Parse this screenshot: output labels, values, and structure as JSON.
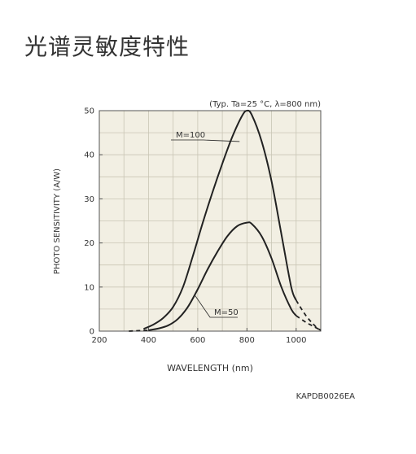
{
  "page": {
    "title": "光谱灵敏度特性"
  },
  "colors": {
    "plot_background": "#f2efe3",
    "grid": "#c9c5b5",
    "curve": "#222222",
    "text": "#333333"
  },
  "chart_data": {
    "type": "line",
    "condition_note": "(Typ. Ta=25 °C, λ=800 nm)",
    "xlabel": "WAVELENGTH (nm)",
    "ylabel": "PHOTO SENSITIVITY (A/W)",
    "xlim": [
      200,
      1100
    ],
    "ylim": [
      0,
      50
    ],
    "xticks": [
      200,
      400,
      600,
      800,
      1000
    ],
    "yticks": [
      0,
      10,
      20,
      30,
      40,
      50
    ],
    "grid": true,
    "series": [
      {
        "name": "M=100",
        "solid": {
          "x": [
            380,
            420,
            460,
            500,
            540,
            580,
            620,
            660,
            700,
            740,
            780,
            800,
            820,
            860,
            900,
            940,
            980,
            1000
          ],
          "y": [
            0.5,
            1.5,
            3.0,
            5.5,
            10.0,
            17.0,
            24.5,
            31.5,
            38.0,
            44.0,
            48.8,
            50.0,
            49.0,
            43.0,
            34.0,
            22.0,
            10.0,
            7.0
          ]
        },
        "dashed": {
          "x": [
            1000,
            1040,
            1080,
            1100
          ],
          "y": [
            7.0,
            3.5,
            1.0,
            0.2
          ]
        }
      },
      {
        "name": "M=50",
        "solid": {
          "x": [
            400,
            440,
            480,
            520,
            560,
            600,
            640,
            680,
            720,
            760,
            800,
            820,
            860,
            900,
            940,
            980,
            1000
          ],
          "y": [
            0.2,
            0.6,
            1.3,
            2.8,
            5.5,
            9.5,
            14.0,
            18.0,
            21.5,
            23.8,
            24.6,
            24.3,
            21.5,
            16.5,
            10.0,
            5.0,
            3.5
          ]
        },
        "dashed": {
          "x": [
            320,
            340,
            360,
            380,
            400
          ],
          "y": [
            0,
            0.05,
            0.1,
            0.15,
            0.2
          ],
          "x2": [
            1000,
            1040,
            1080,
            1100
          ],
          "y2": [
            3.5,
            2.0,
            0.8,
            0.2
          ]
        }
      }
    ],
    "annotations": [
      {
        "text": "M=100",
        "target_series": "M=100",
        "target_x": 770,
        "target_y": 43
      },
      {
        "text": "M=50",
        "target_series": "M=50",
        "target_x": 590,
        "target_y": 8
      }
    ],
    "code_label": "KAPDB0026EA"
  }
}
